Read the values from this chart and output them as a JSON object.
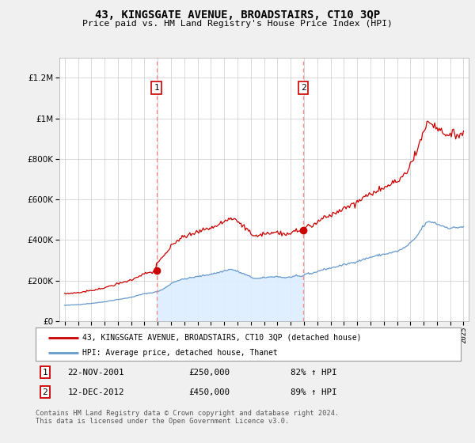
{
  "title": "43, KINGSGATE AVENUE, BROADSTAIRS, CT10 3QP",
  "subtitle": "Price paid vs. HM Land Registry's House Price Index (HPI)",
  "legend_line1": "43, KINGSGATE AVENUE, BROADSTAIRS, CT10 3QP (detached house)",
  "legend_line2": "HPI: Average price, detached house, Thanet",
  "annotation1_date": "22-NOV-2001",
  "annotation1_price": "£250,000",
  "annotation1_hpi": "82% ↑ HPI",
  "annotation2_date": "12-DEC-2012",
  "annotation2_price": "£450,000",
  "annotation2_hpi": "89% ↑ HPI",
  "footer": "Contains HM Land Registry data © Crown copyright and database right 2024.\nThis data is licensed under the Open Government Licence v3.0.",
  "red_color": "#cc0000",
  "blue_color": "#6699cc",
  "blue_fill_color": "#ddeeff",
  "vline_color": "#ff8888",
  "background_color": "#f0f0f0",
  "plot_bg_color": "#ffffff",
  "sale1_year": 2001.9,
  "sale2_year": 2012.95,
  "sale1_price": 250000,
  "sale2_price": 450000
}
